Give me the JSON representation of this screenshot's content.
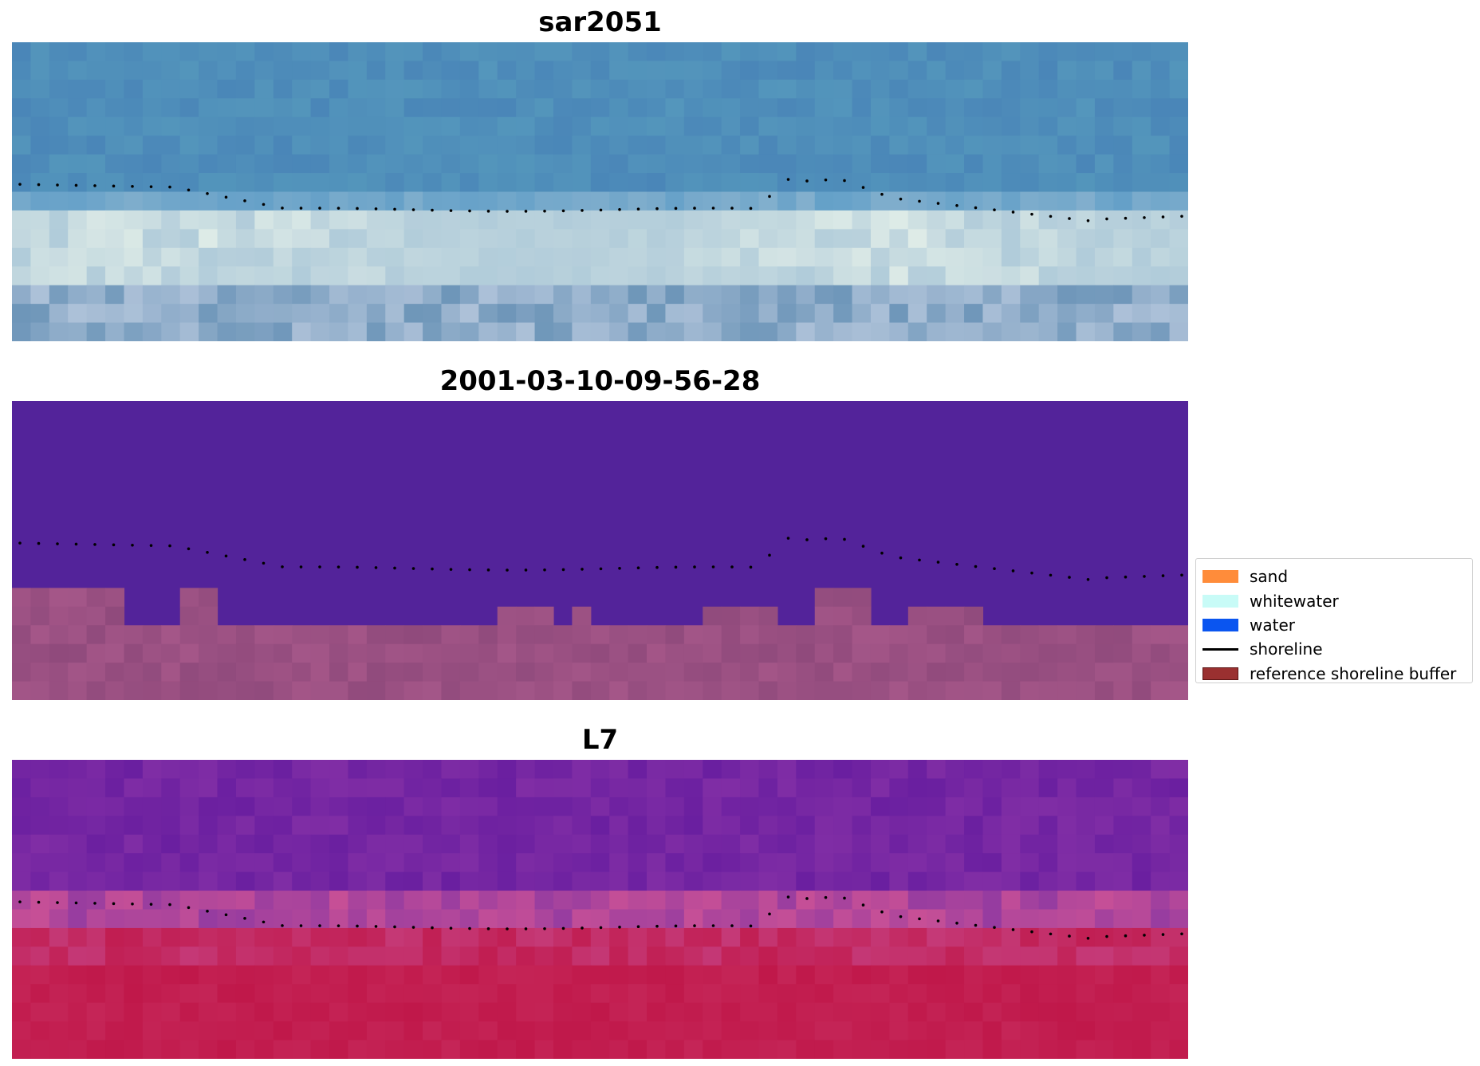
{
  "panels": [
    {
      "title": "sar2051"
    },
    {
      "title": "2001-03-10-09-56-28"
    },
    {
      "title": "L7"
    }
  ],
  "legend": {
    "items": [
      {
        "label": "sand",
        "color": "#ff8c3a",
        "kind": "patch"
      },
      {
        "label": "whitewater",
        "color": "#c8fbf7",
        "kind": "patch"
      },
      {
        "label": "water",
        "color": "#0a55f0",
        "kind": "patch"
      },
      {
        "label": "shoreline",
        "color": "#000000",
        "kind": "line"
      },
      {
        "label": "reference shoreline buffer",
        "color": "#9a3030",
        "kind": "patch"
      }
    ]
  },
  "colors": {
    "sar_sky": "#4a86b8",
    "sar_white": "#e9f3ef",
    "class_water": "#53239a",
    "class_land": "#a45688",
    "l7_top": "#6a1fa0",
    "l7_bottom": "#c0184a"
  }
}
